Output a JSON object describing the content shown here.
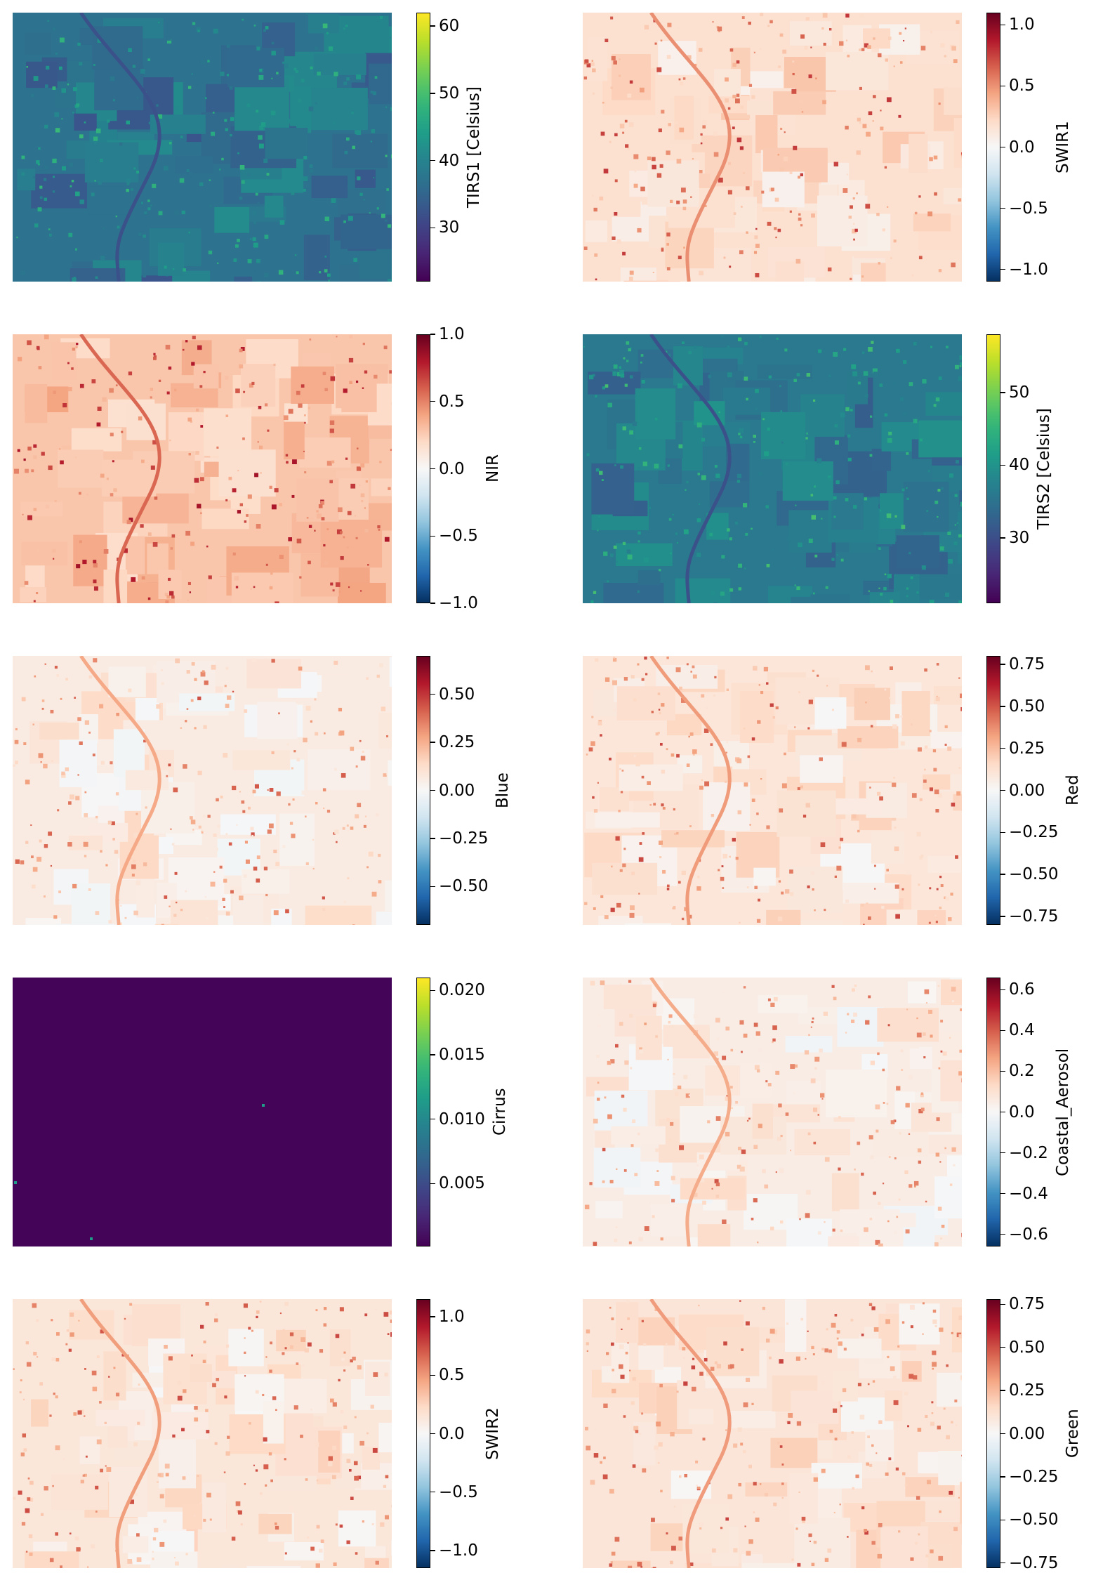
{
  "colors": {
    "viridis": [
      "#440154",
      "#482878",
      "#3e4989",
      "#31688e",
      "#26828e",
      "#1f9e89",
      "#35b779",
      "#6ece58",
      "#b5de2b",
      "#fde725"
    ],
    "rdbu_r": [
      "#053061",
      "#2166ac",
      "#4393c3",
      "#92c5de",
      "#d1e5f0",
      "#f7f7f7",
      "#fddbc7",
      "#f4a582",
      "#d6604d",
      "#b2182b",
      "#67001f"
    ]
  },
  "chart_data": [
    {
      "type": "heatmap",
      "title": "",
      "colorbar_label": "TIRS1 [Celsius]",
      "colormap": "viridis",
      "range": [
        22,
        62
      ],
      "ticks": [
        30,
        40,
        50,
        60
      ],
      "tick_labels": [
        "30",
        "40",
        "50",
        "60"
      ],
      "base_value": 37
    },
    {
      "type": "heatmap",
      "title": "",
      "colorbar_label": "SWIR1",
      "colormap": "rdbu_r",
      "range": [
        -1.1,
        1.1
      ],
      "ticks": [
        -1.0,
        -0.5,
        0.0,
        0.5,
        1.0
      ],
      "tick_labels": [
        "−1.0",
        "−0.5",
        "0.0",
        "0.5",
        "1.0"
      ],
      "base_value": 0.18
    },
    {
      "type": "heatmap",
      "title": "",
      "colorbar_label": "NIR",
      "colormap": "rdbu_r",
      "range": [
        -1.0,
        1.0
      ],
      "ticks": [
        -1.0,
        -0.5,
        0.0,
        0.5,
        1.0
      ],
      "tick_labels": [
        "−1.0",
        "−0.5",
        "0.0",
        "0.5",
        "1.0"
      ],
      "base_value": 0.28
    },
    {
      "type": "heatmap",
      "title": "",
      "colorbar_label": "TIRS2 [Celsius]",
      "colormap": "viridis",
      "range": [
        21,
        58
      ],
      "ticks": [
        30,
        40,
        50
      ],
      "tick_labels": [
        "30",
        "40",
        "50"
      ],
      "base_value": 36
    },
    {
      "type": "heatmap",
      "title": "",
      "colorbar_label": "Blue",
      "colormap": "rdbu_r",
      "range": [
        -0.7,
        0.7
      ],
      "ticks": [
        -0.5,
        -0.25,
        0.0,
        0.25,
        0.5
      ],
      "tick_labels": [
        "−0.50",
        "−0.25",
        "0.00",
        "0.25",
        "0.50"
      ],
      "base_value": 0.06
    },
    {
      "type": "heatmap",
      "title": "",
      "colorbar_label": "Red",
      "colormap": "rdbu_r",
      "range": [
        -0.8,
        0.8
      ],
      "ticks": [
        -0.75,
        -0.5,
        -0.25,
        0.0,
        0.25,
        0.5,
        0.75
      ],
      "tick_labels": [
        "−0.75",
        "−0.50",
        "−0.25",
        "0.00",
        "0.25",
        "0.50",
        "0.75"
      ],
      "base_value": 0.1
    },
    {
      "type": "heatmap",
      "title": "",
      "colorbar_label": "Cirrus",
      "colormap": "viridis",
      "range": [
        0.0001,
        0.021
      ],
      "ticks": [
        0.005,
        0.01,
        0.015,
        0.02
      ],
      "tick_labels": [
        "0.005",
        "0.010",
        "0.015",
        "0.020"
      ],
      "base_value": 0.0003
    },
    {
      "type": "heatmap",
      "title": "",
      "colorbar_label": "Coastal_Aerosol",
      "colormap": "rdbu_r",
      "range": [
        -0.66,
        0.66
      ],
      "ticks": [
        -0.6,
        -0.4,
        -0.2,
        0.0,
        0.2,
        0.4,
        0.6
      ],
      "tick_labels": [
        "−0.6",
        "−0.4",
        "−0.2",
        "0.0",
        "0.2",
        "0.4",
        "0.6"
      ],
      "base_value": 0.05
    },
    {
      "type": "heatmap",
      "title": "",
      "colorbar_label": "SWIR2",
      "colormap": "rdbu_r",
      "range": [
        -1.15,
        1.15
      ],
      "ticks": [
        -1.0,
        -0.5,
        0.0,
        0.5,
        1.0
      ],
      "tick_labels": [
        "−1.0",
        "−0.5",
        "0.0",
        "0.5",
        "1.0"
      ],
      "base_value": 0.14
    },
    {
      "type": "heatmap",
      "title": "",
      "colorbar_label": "Green",
      "colormap": "rdbu_r",
      "range": [
        -0.78,
        0.78
      ],
      "ticks": [
        -0.75,
        -0.5,
        -0.25,
        0.0,
        0.25,
        0.5,
        0.75
      ],
      "tick_labels": [
        "−0.75",
        "−0.50",
        "−0.25",
        "0.00",
        "0.25",
        "0.50",
        "0.75"
      ],
      "base_value": 0.1
    }
  ]
}
